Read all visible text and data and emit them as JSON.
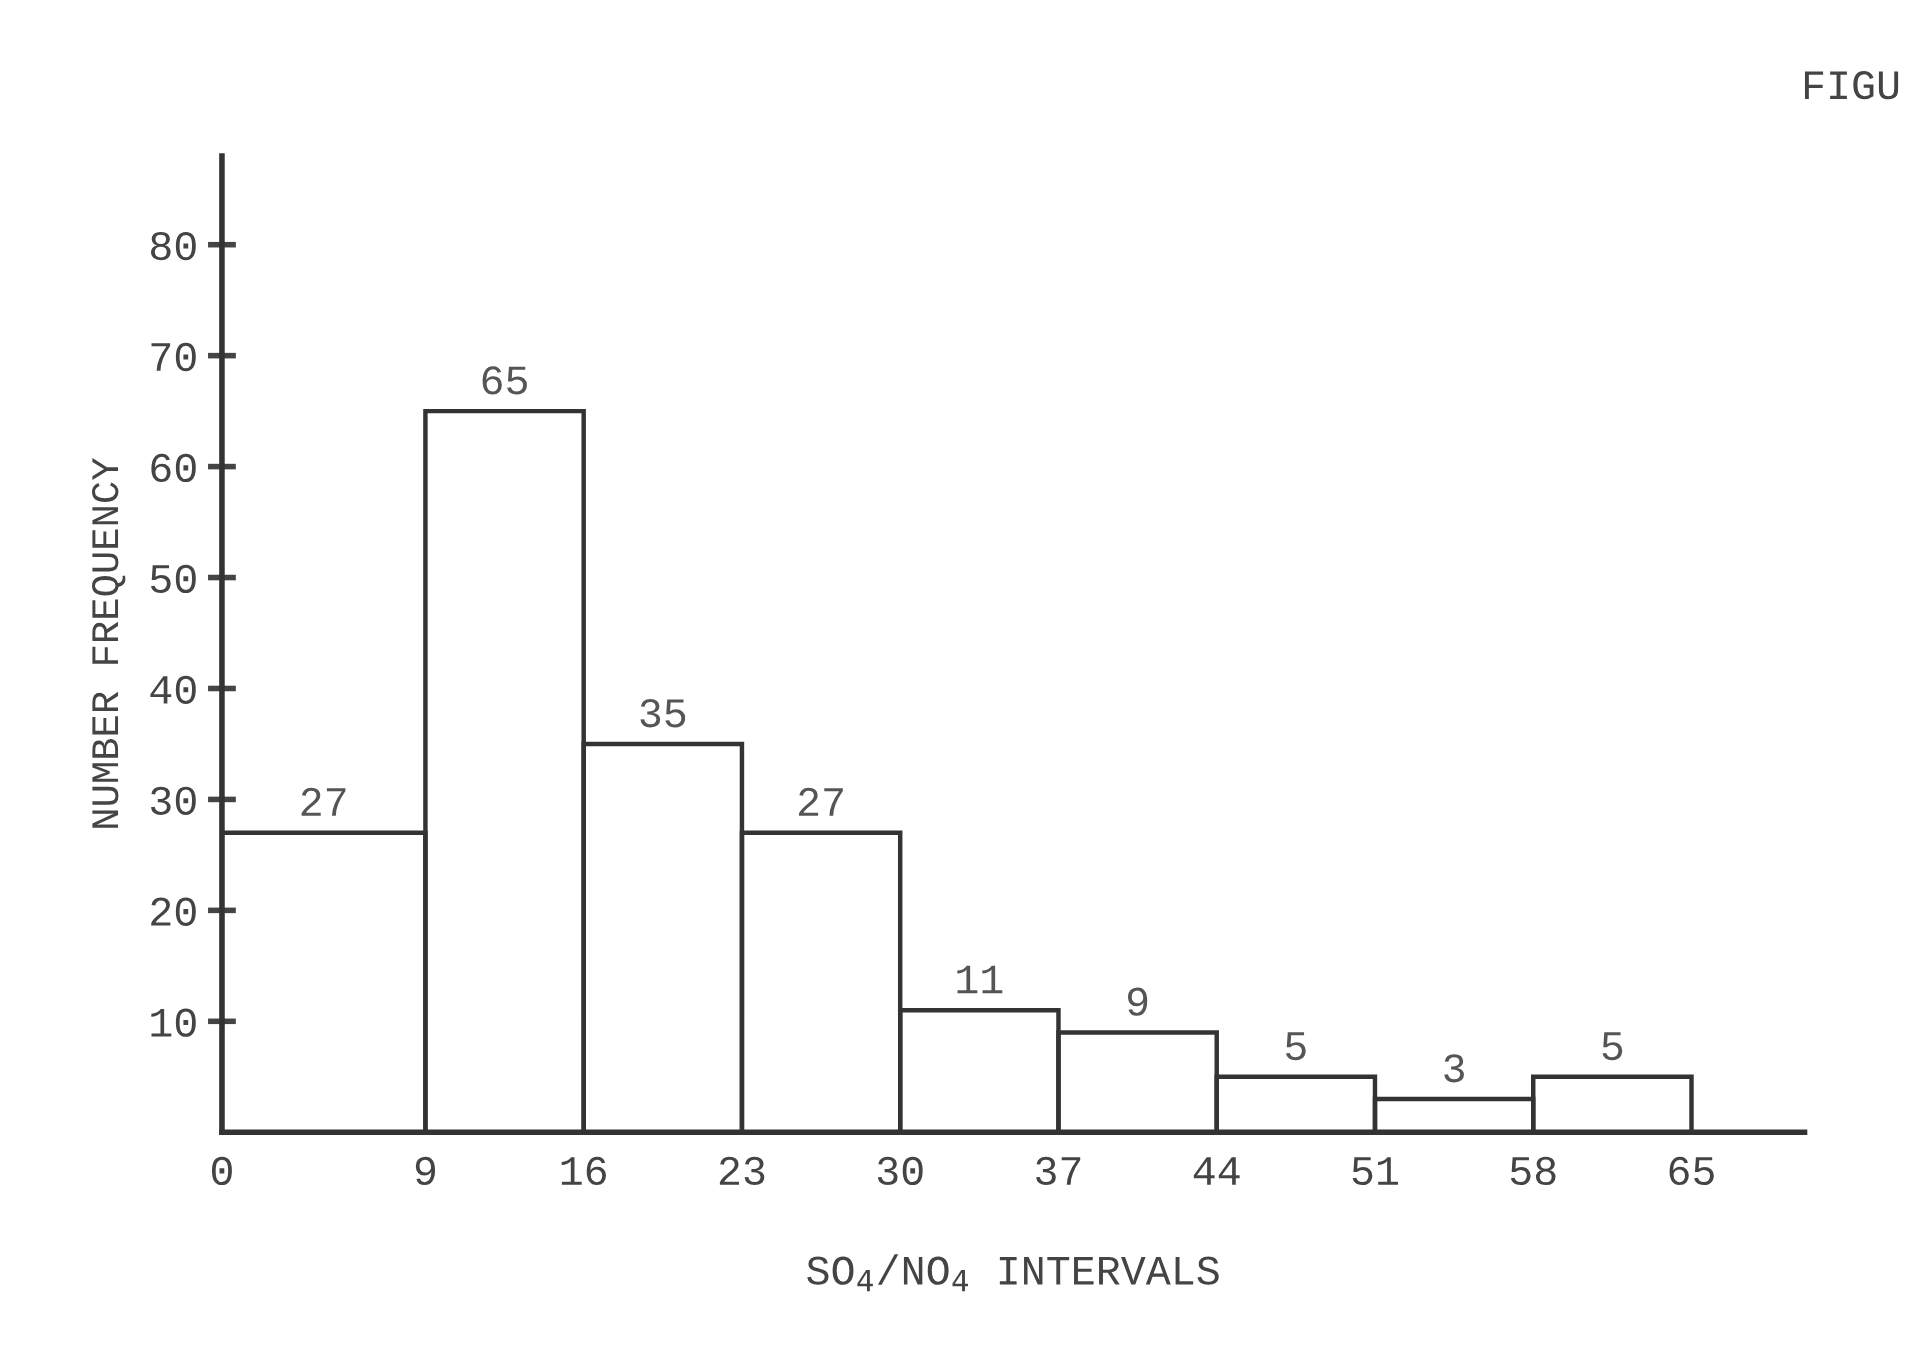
{
  "chart_data": {
    "type": "histogram",
    "xlabel": "SO$_{4}$/NO$_{4}$ INTERVALS",
    "ylabel": "NUMBER FREQUENCY",
    "annotations": [
      "FIGU"
    ],
    "bins": [
      0,
      9,
      16,
      23,
      30,
      37,
      44,
      51,
      58,
      65
    ],
    "values": [
      27,
      65,
      35,
      27,
      11,
      9,
      5,
      3,
      5
    ],
    "color": "#333333",
    "data_labels": true,
    "xlim": [
      0,
      70
    ],
    "xticks": [
      0,
      9,
      16,
      23,
      30,
      37,
      44,
      51,
      58,
      65
    ],
    "ylim": [
      0,
      88
    ],
    "yticks": [
      10,
      20,
      30,
      40,
      50,
      60,
      70,
      80
    ],
    "grid": false
  }
}
